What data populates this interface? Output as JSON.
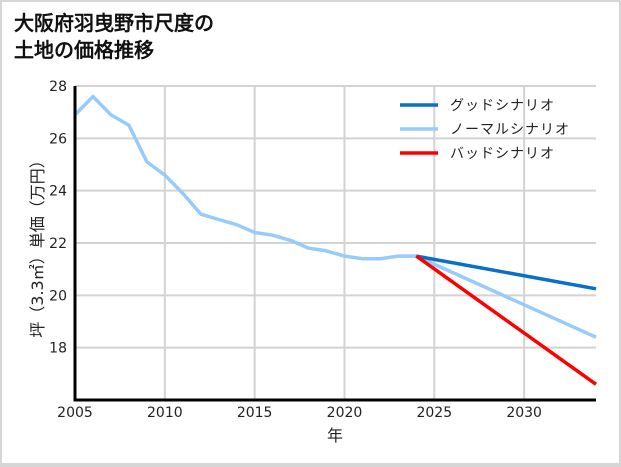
{
  "title_line1": "大阪府羽曳野市尺度の",
  "title_line2": "土地の価格推移",
  "colors": {
    "good": "#0a6fc9",
    "normal": "#96cbfb",
    "bad": "#ff0000",
    "grid": "#d3d3d3",
    "axis": "#000000"
  },
  "chart_data": {
    "type": "line",
    "title": "大阪府羽曳野市尺度の土地の価格推移",
    "xlabel": "年",
    "ylabel": "坪（3.3㎡）単価（万円）",
    "xlim": [
      2005,
      2034
    ],
    "ylim": [
      16,
      28
    ],
    "xticks": [
      2005,
      2010,
      2015,
      2020,
      2025,
      2030
    ],
    "yticks": [
      18,
      20,
      22,
      24,
      26,
      28
    ],
    "grid": true,
    "legend_position": "upper right",
    "series": [
      {
        "name": "グッドシナリオ",
        "color": "#0a6fc9",
        "x": [
          2024,
          2034
        ],
        "values": [
          21.5,
          20.25
        ]
      },
      {
        "name": "ノーマルシナリオ",
        "color": "#96cbfb",
        "x": [
          2005,
          2006,
          2007,
          2008,
          2009,
          2010,
          2011,
          2012,
          2013,
          2014,
          2015,
          2016,
          2017,
          2018,
          2019,
          2020,
          2021,
          2022,
          2023,
          2024,
          2034
        ],
        "values": [
          26.9,
          27.6,
          26.9,
          26.5,
          25.1,
          24.6,
          23.9,
          23.1,
          22.9,
          22.7,
          22.4,
          22.3,
          22.1,
          21.8,
          21.7,
          21.5,
          21.4,
          21.4,
          21.5,
          21.5,
          18.4
        ]
      },
      {
        "name": "バッドシナリオ",
        "color": "#ff0000",
        "x": [
          2024,
          2034
        ],
        "values": [
          21.5,
          16.6
        ]
      }
    ]
  }
}
